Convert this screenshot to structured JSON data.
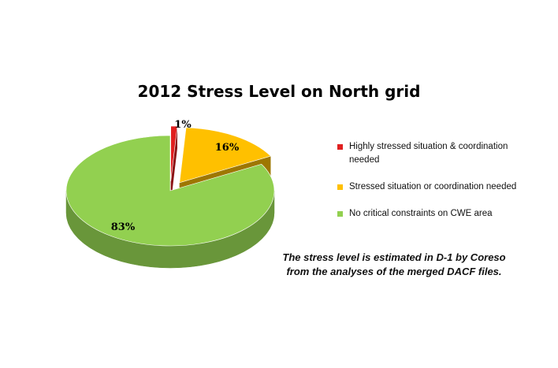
{
  "chart_data": {
    "type": "pie",
    "title": "2012 Stress Level on North grid",
    "style": "3d-exploded",
    "slices": [
      {
        "label": "Highly stressed situation & coordination needed",
        "value": 1,
        "data_label": "1%",
        "color": "#e02020"
      },
      {
        "label": "Stressed situation or coordination needed",
        "value": 16,
        "data_label": "16%",
        "color": "#ffc000"
      },
      {
        "label": "No critical constraints on CWE area",
        "value": 83,
        "data_label": "83%",
        "color": "#92d050"
      }
    ],
    "legend_position": "right"
  },
  "note": {
    "line1": "The stress level is estimated in D-1 by Coreso",
    "line2": "from the analyses of the merged DACF files."
  }
}
